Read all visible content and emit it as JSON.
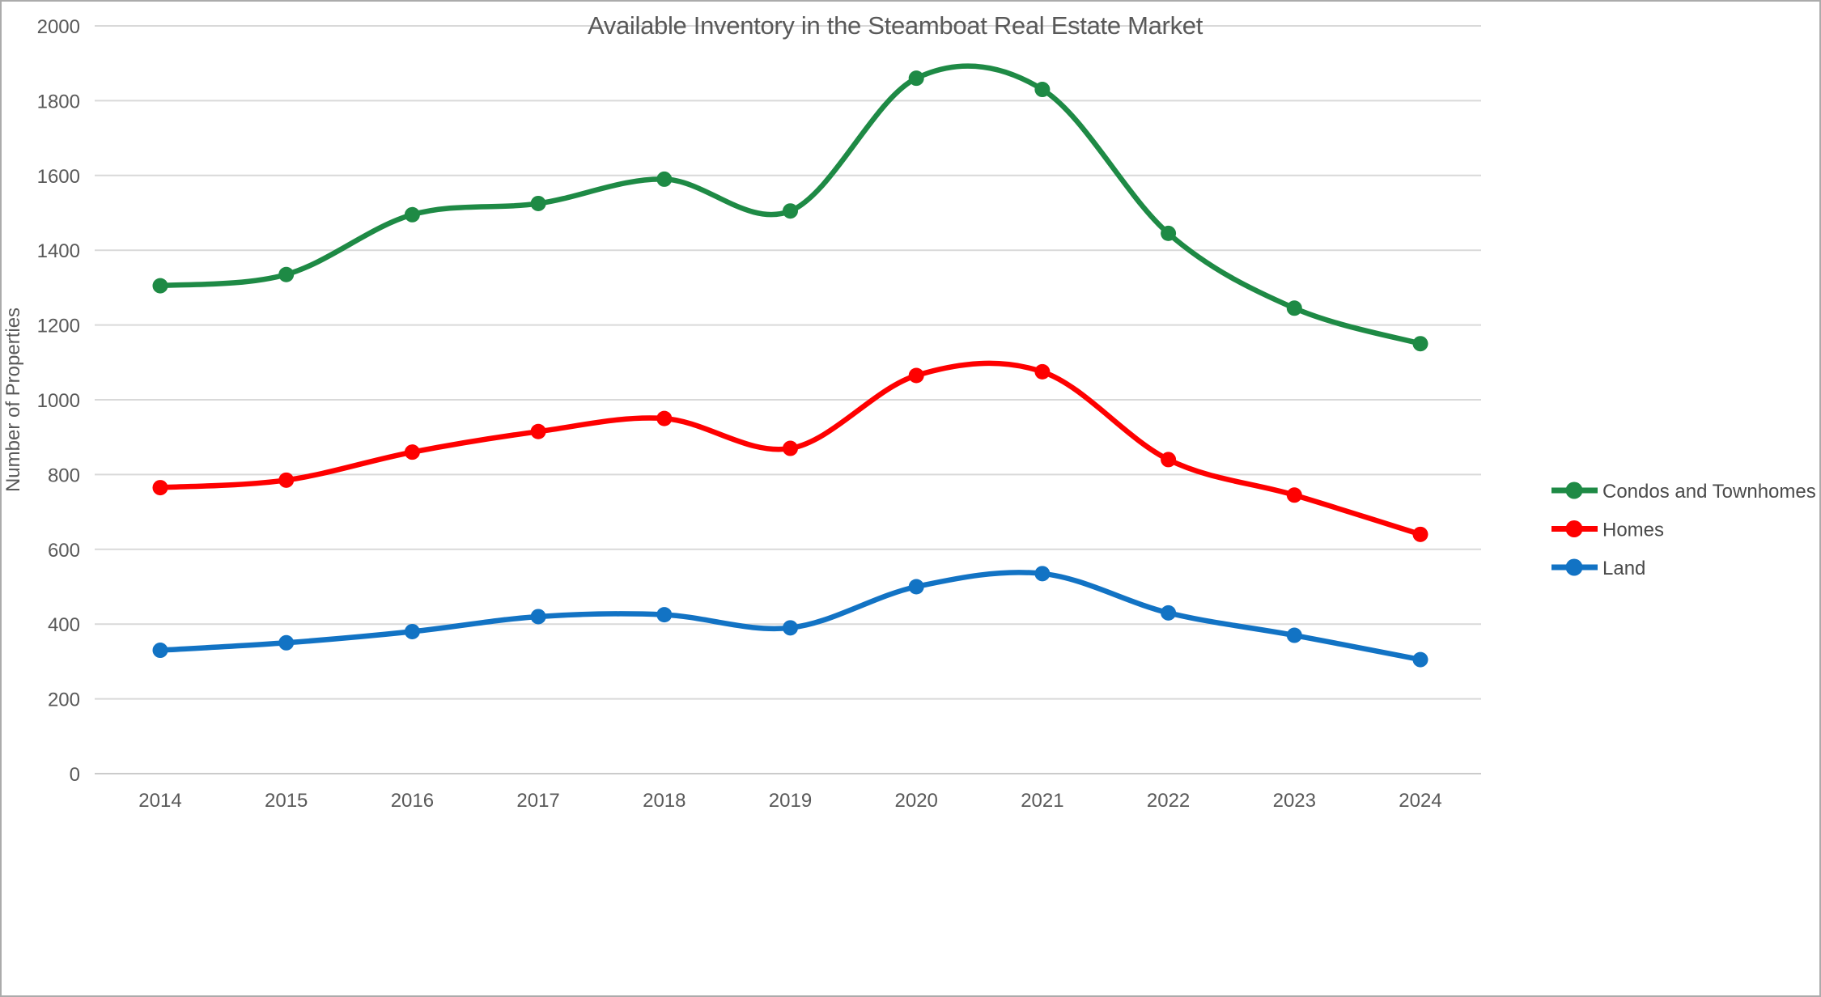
{
  "chart_data": {
    "type": "line",
    "title": "Available Inventory in the Steamboat Real Estate Market",
    "ylabel": "Number of Properties",
    "xlabel": "",
    "categories": [
      "2014",
      "2015",
      "2016",
      "2017",
      "2018",
      "2019",
      "2020",
      "2021",
      "2022",
      "2023",
      "2024"
    ],
    "series": [
      {
        "name": "Condos and Townhomes",
        "color": "#1E8A45",
        "values": [
          1305,
          1335,
          1495,
          1525,
          1590,
          1505,
          1860,
          1830,
          1445,
          1245,
          1150
        ]
      },
      {
        "name": "Homes",
        "color": "#FE0000",
        "values": [
          765,
          785,
          860,
          915,
          950,
          870,
          1065,
          1075,
          840,
          745,
          640
        ]
      },
      {
        "name": "Land",
        "color": "#1273C4",
        "values": [
          330,
          350,
          380,
          420,
          425,
          390,
          500,
          535,
          430,
          370,
          305
        ]
      }
    ],
    "ylim": [
      0,
      2000
    ],
    "ytick_step": 200,
    "yticks": [
      0,
      200,
      400,
      600,
      800,
      1000,
      1200,
      1400,
      1600,
      1800,
      2000
    ],
    "grid": true,
    "legend_position": "right",
    "line_style": "smooth",
    "markers": "circle"
  },
  "styles": {
    "grid_color": "#D9D9D9",
    "baseline_color": "#CBCBCB",
    "text_color": "#595959",
    "legend_text_color": "#4A4A4A",
    "background": "#FFFFFF",
    "border_color": "#ABABAB"
  }
}
